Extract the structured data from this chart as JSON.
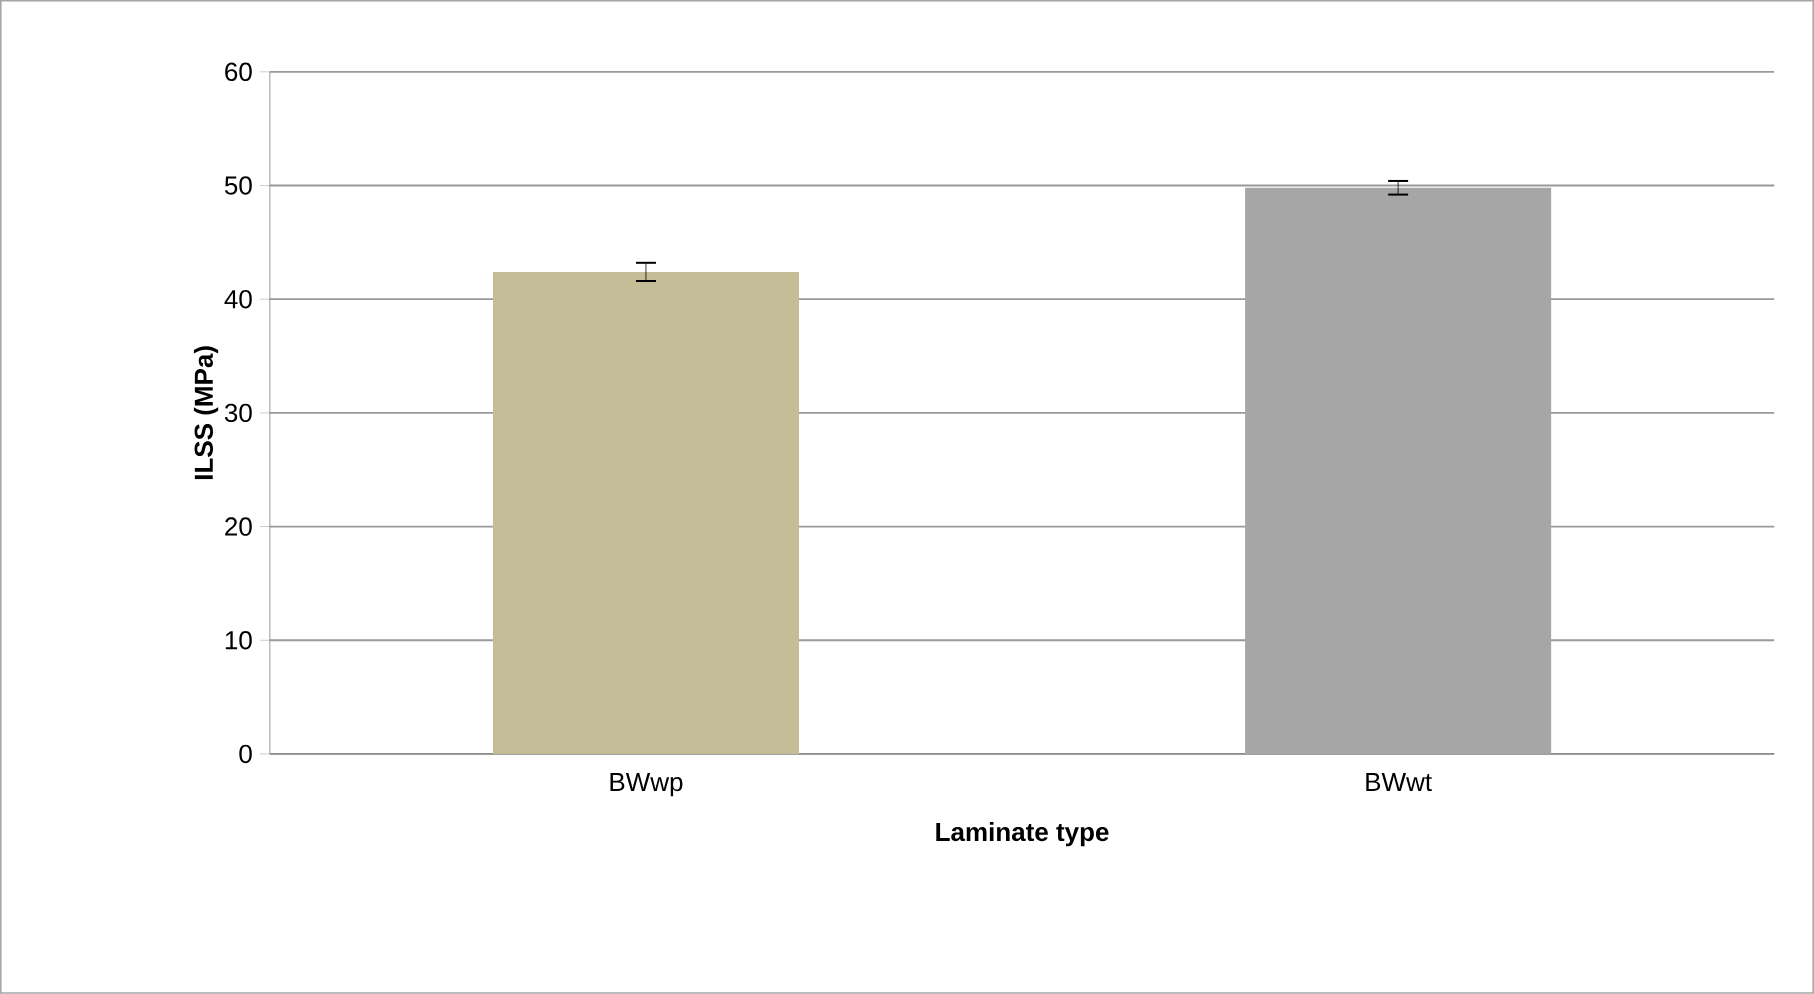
{
  "chart_data": {
    "type": "bar",
    "xlabel": "Laminate type",
    "ylabel": "ILSS (MPa)",
    "categories": [
      "BWwp",
      "BWwt"
    ],
    "values": [
      42.4,
      49.8
    ],
    "colors": [
      "#c4bd97",
      "#a6a6a6"
    ],
    "errors": [
      0.8,
      0.6
    ],
    "ylim": [
      0,
      60
    ],
    "yticks": [
      0,
      10,
      20,
      30,
      40,
      50,
      60
    ],
    "grid": "y"
  }
}
